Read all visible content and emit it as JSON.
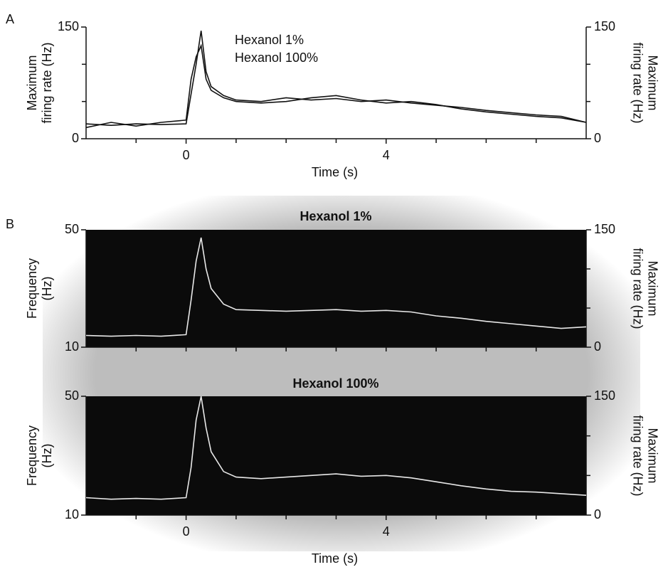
{
  "chart_data": [
    {
      "type": "line",
      "panel_label": "A",
      "xlabel": "Time (s)",
      "ylabel": [
        "Maximum",
        "firing rate (Hz)"
      ],
      "y2label": [
        "Maximum",
        "firing rate (Hz)"
      ],
      "x": [
        -2,
        -1.5,
        -1,
        -0.5,
        0,
        0.1,
        0.2,
        0.3,
        0.4,
        0.5,
        0.75,
        1,
        1.5,
        2,
        2.5,
        3,
        3.5,
        4,
        4.5,
        5,
        5.5,
        6,
        6.5,
        7,
        7.5,
        8
      ],
      "xlim": [
        -2,
        8
      ],
      "xticks": [
        0,
        4
      ],
      "xminor_ticks": [
        -1,
        1,
        2,
        3,
        5,
        6,
        7
      ],
      "ylim": [
        0,
        150
      ],
      "yticks": [
        0,
        150
      ],
      "yminor_ticks": [
        50,
        100
      ],
      "y2lim": [
        0,
        150
      ],
      "y2ticks": [
        0,
        150
      ],
      "y2minor_ticks": [
        50,
        100
      ],
      "background": "#ffffff",
      "series": [
        {
          "name": "Hexanol 1%",
          "color": "#111111",
          "values": [
            20,
            18,
            20,
            19,
            20,
            60,
            100,
            145,
            90,
            70,
            58,
            52,
            50,
            55,
            52,
            54,
            50,
            52,
            48,
            45,
            42,
            38,
            35,
            32,
            30,
            22
          ]
        },
        {
          "name": "Hexanol 100%",
          "color": "#111111",
          "values": [
            15,
            22,
            17,
            22,
            25,
            80,
            110,
            125,
            80,
            65,
            55,
            50,
            48,
            50,
            55,
            58,
            52,
            48,
            50,
            46,
            40,
            36,
            33,
            30,
            28,
            22
          ]
        }
      ]
    },
    {
      "type": "line",
      "panel_label": "B",
      "title": "Hexanol 1%",
      "ylabel": [
        "Frequency",
        "(Hz)"
      ],
      "y2label": [
        "Maximum",
        "firing rate (Hz)"
      ],
      "x": [
        -2,
        -1.5,
        -1,
        -0.5,
        0,
        0.1,
        0.2,
        0.3,
        0.4,
        0.5,
        0.75,
        1,
        1.5,
        2,
        2.5,
        3,
        3.5,
        4,
        4.5,
        5,
        5.5,
        6,
        6.5,
        7,
        7.5,
        8
      ],
      "xlim": [
        -2,
        8
      ],
      "xminor_ticks": [
        -1,
        0,
        1,
        2,
        3,
        4,
        5,
        6,
        7
      ],
      "ylim": [
        10,
        50
      ],
      "yticks": [
        10,
        50
      ],
      "y2lim": [
        0,
        150
      ],
      "y2ticks": [
        0,
        150
      ],
      "y2minor_ticks": [
        50,
        100
      ],
      "background": "#0b0b0b",
      "series": [
        {
          "color": "#e8e8e8",
          "axis": "y2",
          "values": [
            15,
            14,
            15,
            14,
            16,
            60,
            110,
            140,
            100,
            75,
            55,
            48,
            47,
            46,
            47,
            48,
            46,
            47,
            45,
            40,
            37,
            33,
            30,
            27,
            24,
            26
          ]
        }
      ]
    },
    {
      "type": "line",
      "title": "Hexanol 100%",
      "xlabel": "Time (s)",
      "ylabel": [
        "Frequency",
        "(Hz)"
      ],
      "y2label": [
        "Maximum",
        "firing rate (Hz)"
      ],
      "x": [
        -2,
        -1.5,
        -1,
        -0.5,
        0,
        0.1,
        0.2,
        0.3,
        0.4,
        0.5,
        0.75,
        1,
        1.5,
        2,
        2.5,
        3,
        3.5,
        4,
        4.5,
        5,
        5.5,
        6,
        6.5,
        7,
        7.5,
        8
      ],
      "xlim": [
        -2,
        8
      ],
      "xticks": [
        0,
        4
      ],
      "xminor_ticks": [
        -1,
        1,
        2,
        3,
        5,
        6,
        7
      ],
      "ylim": [
        10,
        50
      ],
      "yticks": [
        10,
        50
      ],
      "y2lim": [
        0,
        150
      ],
      "y2ticks": [
        0,
        150
      ],
      "y2minor_ticks": [
        50,
        100
      ],
      "background": "#0b0b0b",
      "series": [
        {
          "color": "#e8e8e8",
          "axis": "y2",
          "values": [
            22,
            20,
            21,
            20,
            22,
            60,
            120,
            150,
            110,
            80,
            55,
            48,
            46,
            48,
            50,
            52,
            49,
            50,
            47,
            42,
            37,
            33,
            30,
            29,
            27,
            25
          ]
        }
      ]
    }
  ]
}
